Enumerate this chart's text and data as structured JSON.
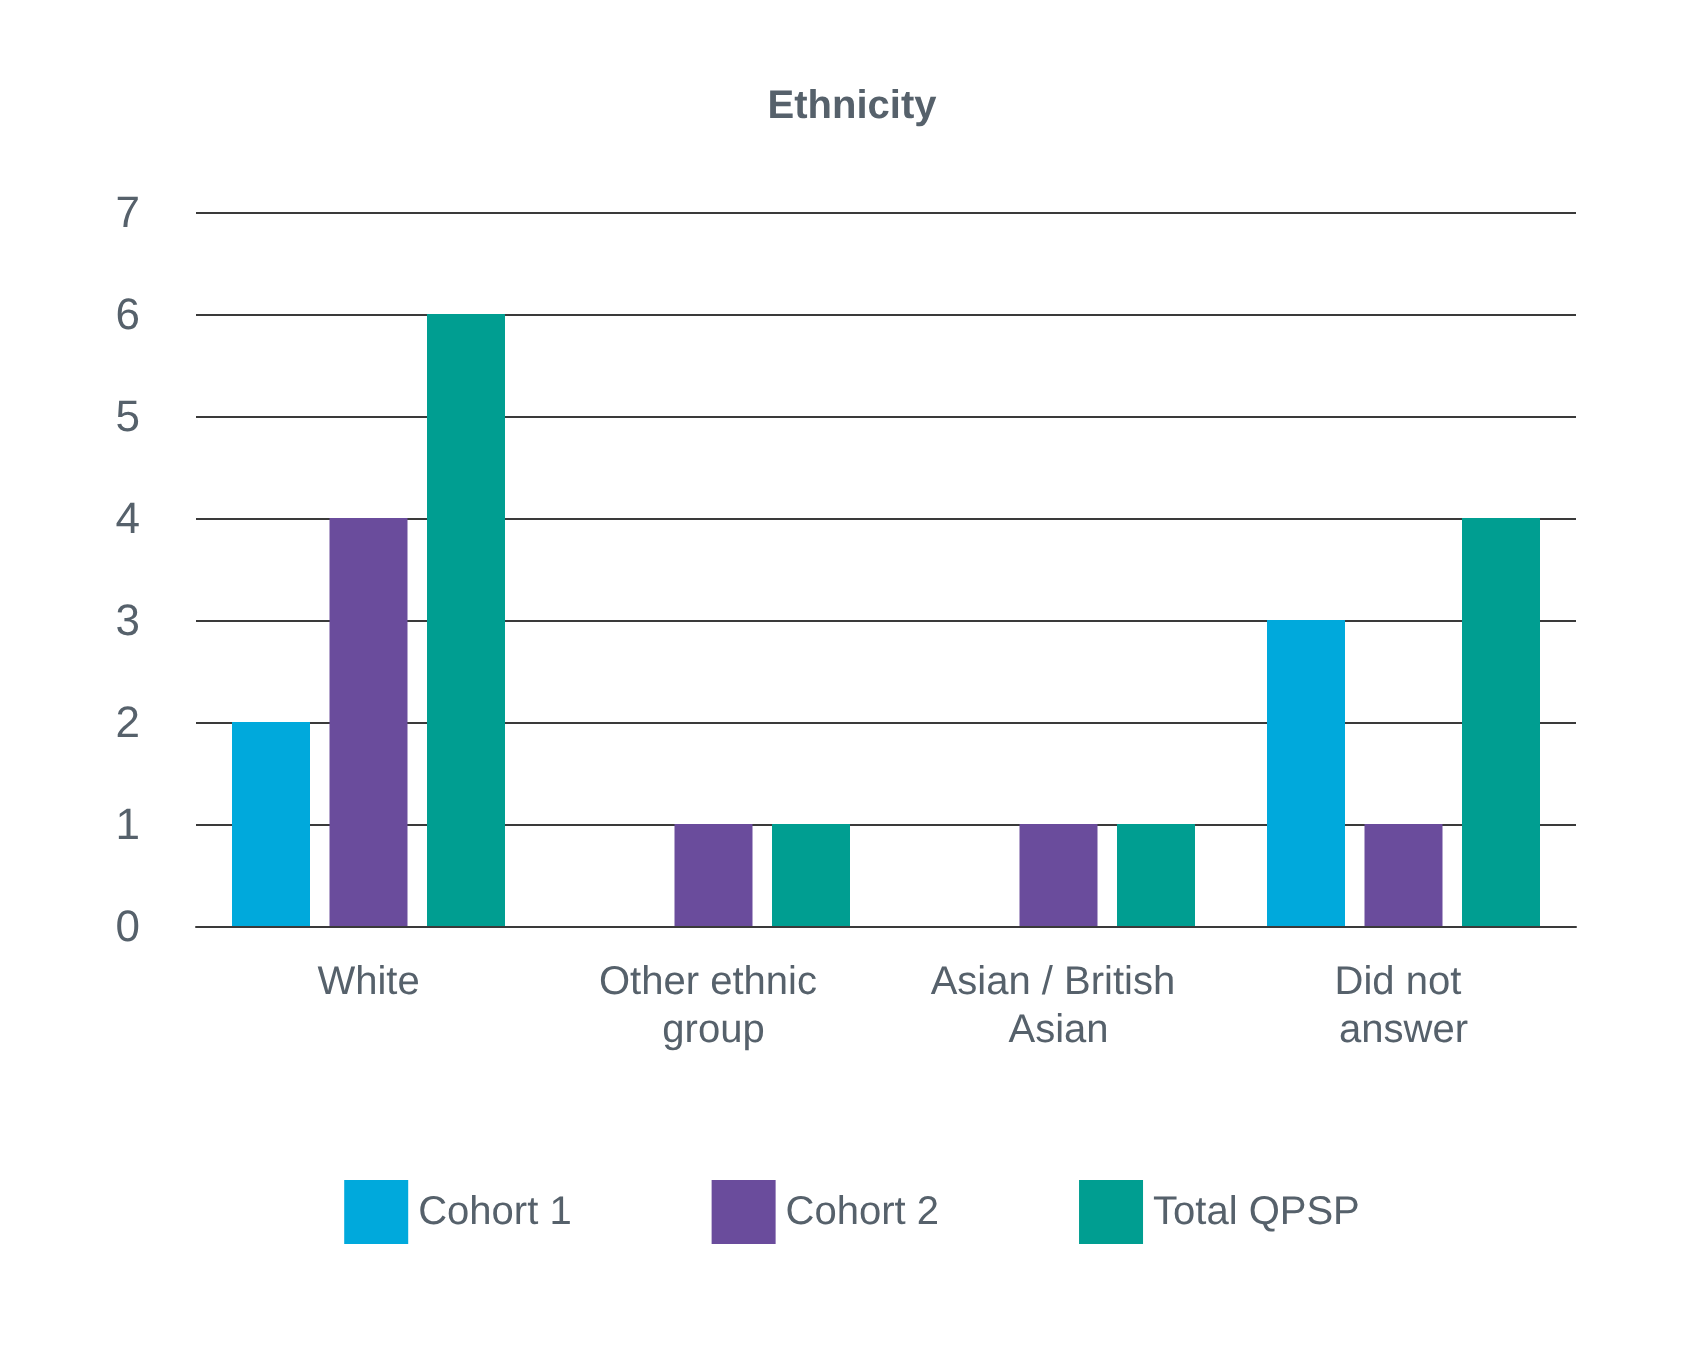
{
  "chart_data": {
    "type": "bar",
    "title": "Ethnicity",
    "categories": [
      "White",
      "Other ethnic group",
      "Asian / British Asian",
      "Did not answer"
    ],
    "series": [
      {
        "name": "Cohort 1",
        "color": "#00a9dc",
        "values": [
          2,
          0,
          0,
          3
        ]
      },
      {
        "name": "Cohort 2",
        "color": "#6a4c9c",
        "values": [
          4,
          1,
          1,
          1
        ]
      },
      {
        "name": "Total QPSP",
        "color": "#009e91",
        "values": [
          6,
          1,
          1,
          4
        ]
      }
    ],
    "ylim": [
      0,
      7
    ],
    "yticks": [
      0,
      1,
      2,
      3,
      4,
      5,
      6,
      7
    ],
    "grid": "y",
    "legend": "bottom"
  }
}
